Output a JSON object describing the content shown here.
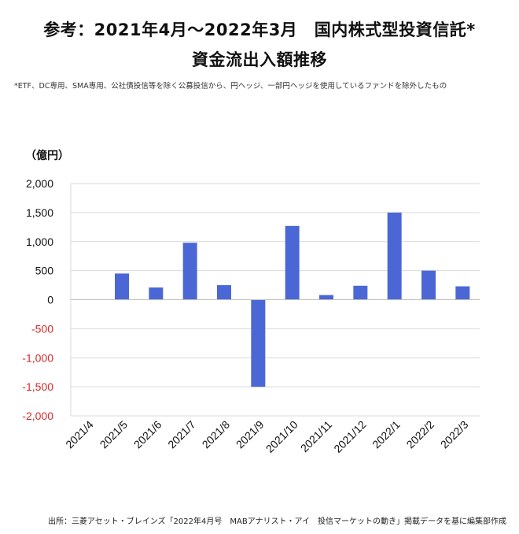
{
  "header": {
    "title_line1": "参考：2021年4月～2022年3月　国内株式型投資信託*",
    "title_line2": "資金流出入額推移",
    "note": "*ETF、DC専用、SMA専用、公社債投信等を除く公募投信から、円ヘッジ、一部円ヘッジを使用しているファンドを除外したもの"
  },
  "footer": {
    "source": "出所：三菱アセット・ブレインズ「2022年4月号　MABアナリスト・アイ　投信マーケットの動き」掲載データを基に編集部作成"
  },
  "colors": {
    "bar": "#4b67d6",
    "negative_tick": "#d42a2a",
    "grid": "#d9d9d9"
  },
  "chart_data": {
    "type": "bar",
    "title": "参考：2021年4月～2022年3月　国内株式型投資信託* 資金流出入額推移",
    "unit_label": "（億円）",
    "categories": [
      "2021/4",
      "2021/5",
      "2021/6",
      "2021/7",
      "2021/8",
      "2021/9",
      "2021/10",
      "2021/11",
      "2021/12",
      "2022/1",
      "2022/2",
      "2022/3"
    ],
    "values": [
      5,
      450,
      210,
      980,
      250,
      -1500,
      1270,
      80,
      240,
      1500,
      500,
      230
    ],
    "ylim": [
      -2000,
      2000
    ],
    "yticks": [
      2000,
      1500,
      1000,
      500,
      0,
      -500,
      -1000,
      -1500,
      -2000
    ],
    "ytick_labels": [
      "2,000",
      "1,500",
      "1,000",
      "500",
      "0",
      "-500",
      "-1,000",
      "-1,500",
      "-2,000"
    ],
    "grid": true,
    "legend": "none"
  }
}
